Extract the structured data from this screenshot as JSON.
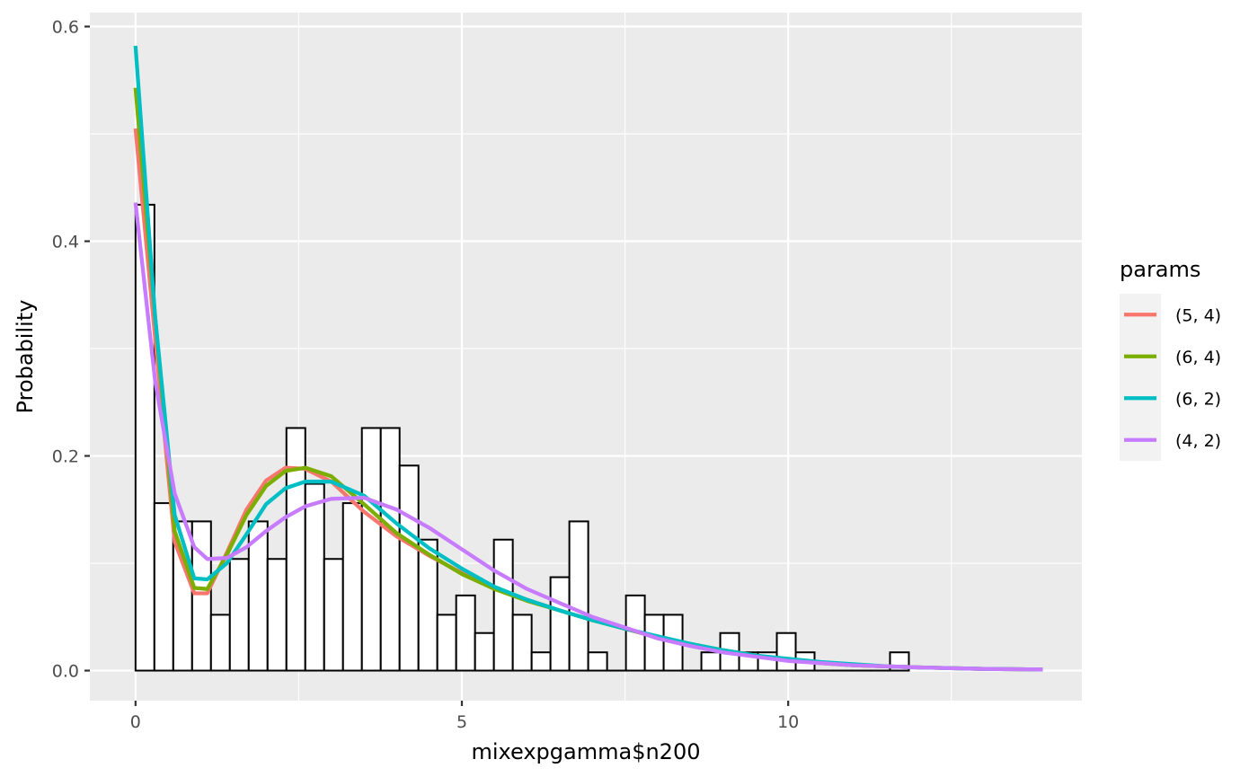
{
  "chart_data": {
    "type": "histogram+line",
    "xlabel": "mixexpgamma$n200",
    "ylabel": "Probability",
    "xlim": [
      -0.7,
      14.5
    ],
    "ylim": [
      -0.028,
      0.613
    ],
    "x_ticks": [
      0,
      5,
      10
    ],
    "y_ticks": [
      0.0,
      0.2,
      0.4,
      0.6
    ],
    "y_tick_labels": [
      "0.0",
      "0.2",
      "0.4",
      "0.6"
    ],
    "grid": true,
    "histogram": {
      "bin_width": 0.289,
      "start": 0,
      "values": [
        0.434,
        0.156,
        0.139,
        0.139,
        0.052,
        0.104,
        0.139,
        0.104,
        0.226,
        0.174,
        0.104,
        0.156,
        0.226,
        0.226,
        0.191,
        0.122,
        0.052,
        0.07,
        0.035,
        0.122,
        0.052,
        0.017,
        0.087,
        0.139,
        0.017,
        0.0,
        0.07,
        0.052,
        0.052,
        0.0,
        0.017,
        0.035,
        0.017,
        0.017,
        0.035,
        0.017,
        0.0,
        0.0,
        0.0,
        0.0,
        0.017
      ]
    },
    "legend": {
      "title": "params",
      "position": "right"
    },
    "series": [
      {
        "name": "(5, 4)",
        "color": "#F8766D",
        "x": [
          0,
          0.3,
          0.6,
          0.9,
          1.1,
          1.4,
          1.7,
          2.0,
          2.3,
          2.6,
          3.0,
          3.5,
          4.0,
          4.5,
          5.0,
          5.5,
          6.0,
          6.5,
          7.0,
          7.5,
          8.0,
          8.5,
          9.0,
          9.5,
          10.0,
          10.5,
          11.0,
          11.5,
          12.0,
          13.0,
          13.9
        ],
        "y": [
          0.505,
          0.31,
          0.12,
          0.072,
          0.072,
          0.11,
          0.15,
          0.177,
          0.189,
          0.188,
          0.176,
          0.148,
          0.125,
          0.107,
          0.091,
          0.077,
          0.066,
          0.056,
          0.047,
          0.039,
          0.031,
          0.024,
          0.018,
          0.014,
          0.01,
          0.007,
          0.005,
          0.004,
          0.003,
          0.0015,
          0.001
        ]
      },
      {
        "name": "(6, 4)",
        "color": "#7CAE00",
        "x": [
          0,
          0.3,
          0.6,
          0.9,
          1.1,
          1.4,
          1.7,
          2.0,
          2.3,
          2.6,
          3.0,
          3.5,
          4.0,
          4.5,
          5.0,
          5.5,
          6.0,
          6.5,
          7.0,
          7.5,
          8.0,
          8.5,
          9.0,
          9.5,
          10.0,
          10.5,
          11.0,
          11.5,
          12.0,
          13.0,
          13.9
        ],
        "y": [
          0.543,
          0.33,
          0.13,
          0.077,
          0.076,
          0.108,
          0.145,
          0.172,
          0.186,
          0.189,
          0.181,
          0.155,
          0.128,
          0.108,
          0.09,
          0.076,
          0.065,
          0.056,
          0.047,
          0.039,
          0.031,
          0.025,
          0.019,
          0.014,
          0.01,
          0.007,
          0.005,
          0.004,
          0.003,
          0.0015,
          0.001
        ]
      },
      {
        "name": "(6, 2)",
        "color": "#00BFC4",
        "x": [
          0,
          0.3,
          0.6,
          0.9,
          1.1,
          1.4,
          1.7,
          2.0,
          2.3,
          2.6,
          3.0,
          3.5,
          4.0,
          4.5,
          5.0,
          5.5,
          6.0,
          6.5,
          7.0,
          7.5,
          8.0,
          8.5,
          9.0,
          9.5,
          10.0,
          10.5,
          11.0,
          11.5,
          12.0,
          13.0,
          13.9
        ],
        "y": [
          0.582,
          0.33,
          0.145,
          0.086,
          0.085,
          0.1,
          0.127,
          0.155,
          0.17,
          0.176,
          0.176,
          0.163,
          0.137,
          0.114,
          0.095,
          0.078,
          0.066,
          0.056,
          0.047,
          0.039,
          0.032,
          0.025,
          0.019,
          0.014,
          0.011,
          0.008,
          0.006,
          0.004,
          0.003,
          0.0015,
          0.001
        ]
      },
      {
        "name": "(4, 2)",
        "color": "#C77CFF",
        "x": [
          0,
          0.3,
          0.6,
          0.9,
          1.1,
          1.4,
          1.7,
          2.0,
          2.3,
          2.6,
          3.0,
          3.5,
          4.0,
          4.5,
          5.0,
          5.5,
          6.0,
          6.5,
          7.0,
          7.5,
          8.0,
          8.5,
          9.0,
          9.5,
          10.0,
          10.5,
          11.0,
          11.5,
          12.0,
          13.0,
          13.9
        ],
        "y": [
          0.436,
          0.27,
          0.165,
          0.115,
          0.104,
          0.105,
          0.115,
          0.13,
          0.143,
          0.153,
          0.16,
          0.161,
          0.15,
          0.133,
          0.113,
          0.093,
          0.076,
          0.063,
          0.05,
          0.04,
          0.03,
          0.023,
          0.017,
          0.013,
          0.009,
          0.007,
          0.005,
          0.004,
          0.003,
          0.0015,
          0.001
        ]
      }
    ]
  }
}
